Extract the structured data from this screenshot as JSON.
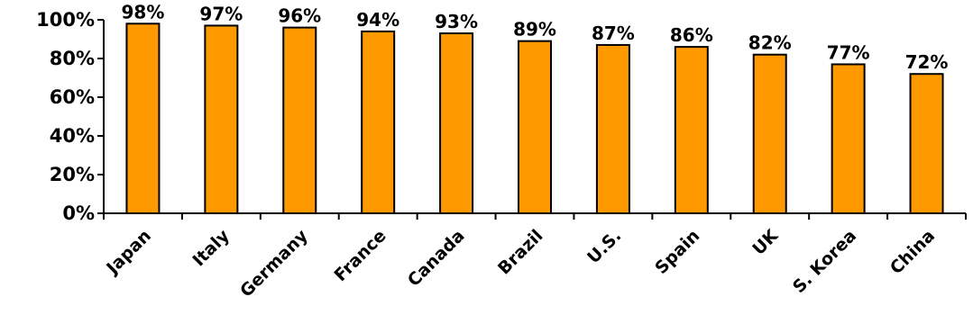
{
  "chart_data": {
    "type": "bar",
    "title": "",
    "xlabel": "",
    "ylabel": "",
    "categories": [
      "Japan",
      "Italy",
      "Germany",
      "France",
      "Canada",
      "Brazil",
      "U.S.",
      "Spain",
      "UK",
      "S. Korea",
      "China"
    ],
    "values": [
      98,
      97,
      96,
      94,
      93,
      89,
      87,
      86,
      82,
      77,
      72
    ],
    "value_labels": [
      "98%",
      "97%",
      "96%",
      "94%",
      "93%",
      "89%",
      "87%",
      "86%",
      "82%",
      "77%",
      "72%"
    ],
    "ylim": [
      0,
      100
    ],
    "yticks": [
      0,
      20,
      40,
      60,
      80,
      100
    ],
    "ytick_labels": [
      "0%",
      "20%",
      "40%",
      "60%",
      "80%",
      "100%"
    ],
    "grid": false,
    "legend": "none",
    "bar_color": "#FF9900",
    "bar_outline_color": "#000000"
  }
}
